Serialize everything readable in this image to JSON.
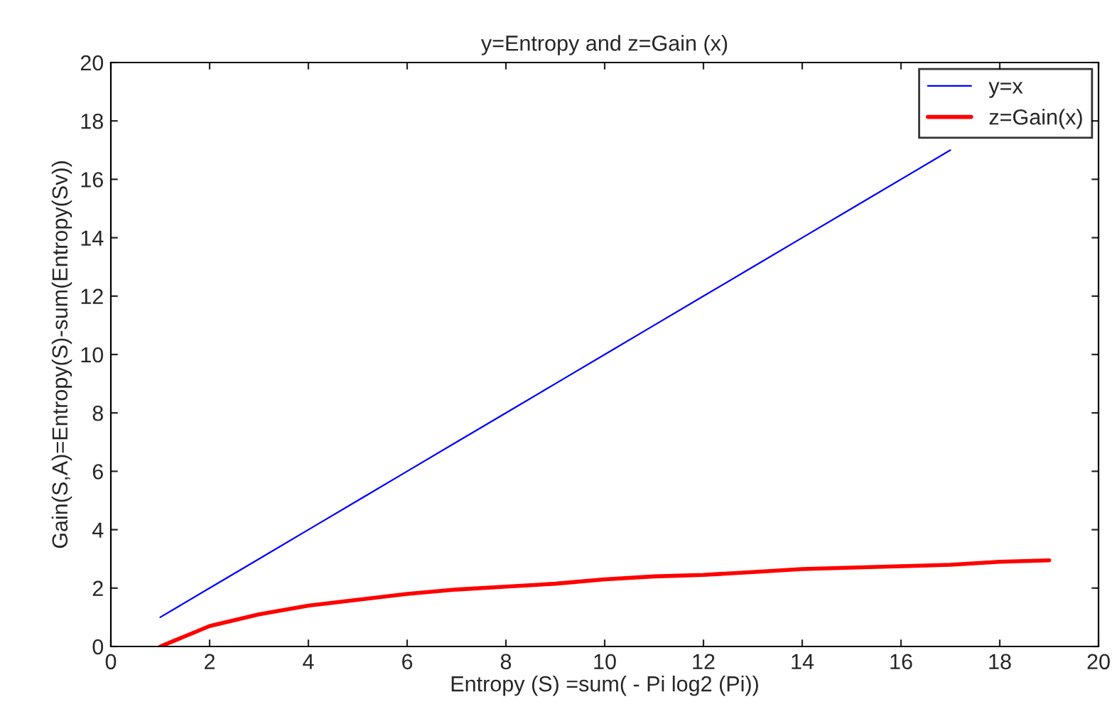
{
  "chart_data": {
    "type": "line",
    "title": "y=Entropy and z=Gain (x)",
    "xlabel": "Entropy (S) =sum( - Pi log2 (Pi))",
    "ylabel": "Gain(S,A)=Entropy(S)-sum(Entropy(Sv))",
    "x": [
      1,
      2,
      3,
      4,
      5,
      6,
      7,
      8,
      9,
      10,
      11,
      12,
      13,
      14,
      15,
      16,
      17,
      18,
      19
    ],
    "series": [
      {
        "name": "y=x",
        "color": "#0000ff",
        "values": [
          1,
          2,
          3,
          4,
          5,
          6,
          7,
          8,
          9,
          10,
          11,
          12,
          13,
          14,
          15,
          16,
          17,
          null,
          null
        ]
      },
      {
        "name": "z=Gain(x)",
        "color": "#ff0000",
        "values": [
          0,
          0.7,
          1.1,
          1.4,
          1.6,
          1.8,
          1.95,
          2.05,
          2.15,
          2.3,
          2.4,
          2.45,
          2.55,
          2.65,
          2.7,
          2.75,
          2.8,
          2.9,
          2.95
        ]
      }
    ],
    "xlim": [
      0,
      20
    ],
    "ylim": [
      0,
      20
    ],
    "xticks": [
      0,
      2,
      4,
      6,
      8,
      10,
      12,
      14,
      16,
      18,
      20
    ],
    "yticks": [
      0,
      2,
      4,
      6,
      8,
      10,
      12,
      14,
      16,
      18,
      20
    ],
    "grid": false,
    "legend": "top right",
    "marker": "none",
    "line_style": "solid"
  }
}
